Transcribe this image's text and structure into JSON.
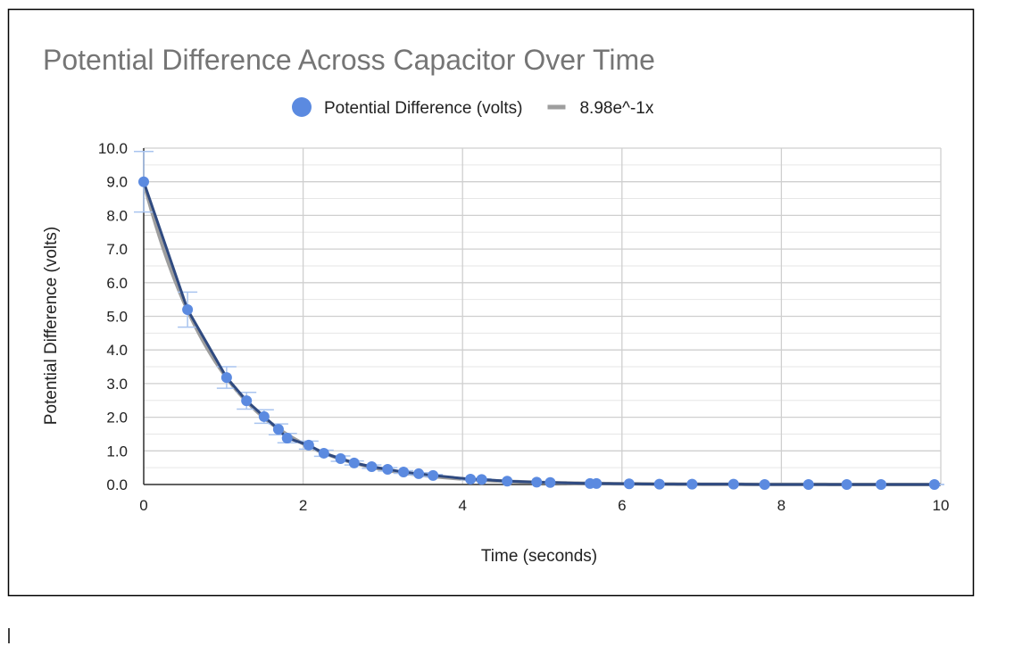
{
  "chart_data": {
    "type": "scatter",
    "title": "Potential Difference Across Capacitor Over Time",
    "x_label": "Time (seconds)",
    "y_label": "Potential Difference (volts)",
    "xlim": [
      0,
      10
    ],
    "ylim": [
      0,
      10
    ],
    "xticks": [
      0,
      2,
      4,
      6,
      8,
      10
    ],
    "yticks": [
      {
        "value": 0,
        "label": "0.0"
      },
      {
        "value": 1,
        "label": "1.0"
      },
      {
        "value": 2,
        "label": "2.0"
      },
      {
        "value": 3,
        "label": "3.0"
      },
      {
        "value": 4,
        "label": "4.0"
      },
      {
        "value": 5,
        "label": "5.0"
      },
      {
        "value": 6,
        "label": "6.0"
      },
      {
        "value": 7,
        "label": "7.0"
      },
      {
        "value": 8,
        "label": "8.0"
      },
      {
        "value": 9,
        "label": "9.0"
      },
      {
        "value": 10,
        "label": "10.0"
      }
    ],
    "grid": true,
    "legend": "top",
    "series": [
      {
        "name": "Potential Difference (volts)",
        "color": "#5b8ae0",
        "line_color": "#2f4a80",
        "error_color": "#a9c4ef",
        "x": [
          0,
          0.55,
          1.04,
          1.29,
          1.51,
          1.69,
          1.8,
          2.07,
          2.26,
          2.47,
          2.64,
          2.86,
          3.06,
          3.26,
          3.45,
          3.63,
          4.1,
          4.24,
          4.56,
          4.93,
          5.1,
          5.6,
          5.68,
          6.09,
          6.47,
          6.88,
          7.4,
          7.79,
          8.34,
          8.82,
          9.25,
          9.92
        ],
        "values": [
          9.0,
          5.2,
          3.18,
          2.49,
          2.02,
          1.64,
          1.38,
          1.17,
          0.93,
          0.77,
          0.64,
          0.53,
          0.45,
          0.37,
          0.32,
          0.27,
          0.16,
          0.15,
          0.1,
          0.07,
          0.06,
          0.03,
          0.03,
          0.02,
          0.01,
          0.01,
          0.01,
          0,
          0,
          0,
          0,
          0
        ],
        "errors": [
          0.9,
          0.52,
          0.32,
          0.25,
          0.2,
          0.16,
          0.14,
          0.12,
          0.09,
          0.08,
          0.06,
          0.05,
          0.05,
          0.04,
          0.03,
          0.03,
          0.02,
          0.02,
          0.01,
          0.01,
          0.01,
          0,
          0,
          0,
          0,
          0,
          0,
          0,
          0,
          0,
          0,
          0
        ]
      }
    ],
    "trendline": {
      "label": "8.98e^-1x",
      "a": 8.98,
      "b": -1,
      "color": "#9e9e9e"
    }
  }
}
